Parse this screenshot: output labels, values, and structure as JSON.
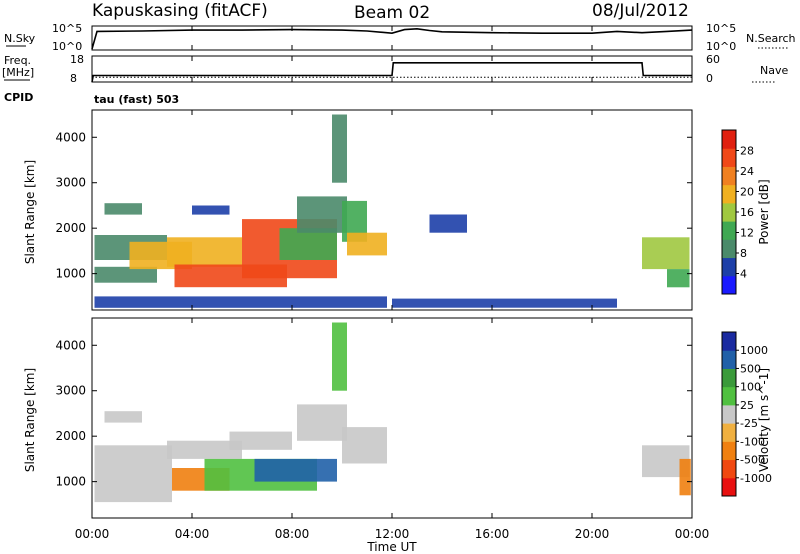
{
  "header": {
    "station": "Kapuskasing (fitACF)",
    "beam": "Beam 02",
    "date": "08/Jul/2012"
  },
  "strip_labels": {
    "nsky": "N.Sky",
    "nsky_ticks": [
      "10^5",
      "10^0"
    ],
    "nsearch": "N.Search",
    "freq_line1": "Freq.",
    "freq_line2": "[MHz]",
    "freq_ticks": [
      "18",
      "8"
    ],
    "nave": "Nave",
    "nave_ticks": [
      "60",
      "0"
    ],
    "cpid": "CPID",
    "cpid_value": "tau (fast) 503"
  },
  "colors": {
    "power": [
      "#1a1aff",
      "#1d3fa8",
      "#4a8a6a",
      "#3fa852",
      "#a0c840",
      "#f0b020",
      "#f08020",
      "#f04818",
      "#e02010"
    ],
    "velocity": [
      "#e81010",
      "#f04810",
      "#f08010",
      "#f0b040",
      "#c8c8c8",
      "#50c040",
      "#3a9a3a",
      "#2060a8",
      "#1a2aa0"
    ],
    "line": "#000000"
  },
  "chart_data": [
    {
      "type": "line",
      "name": "noise-strip",
      "x_ticks": [
        "00:00",
        "04:00",
        "08:00",
        "12:00",
        "16:00",
        "20:00",
        "00:00"
      ],
      "series": [
        {
          "name": "N.Sky",
          "x": [
            0,
            0.2,
            2,
            4,
            6,
            8,
            10,
            11,
            12,
            12.5,
            13,
            13.5,
            14,
            16,
            18,
            20,
            21,
            22,
            23,
            24
          ],
          "values": [
            0,
            4,
            4.1,
            4.3,
            4.3,
            4.4,
            4.3,
            4.1,
            3.6,
            4.4,
            4.6,
            4.2,
            3.9,
            3.7,
            3.6,
            3.6,
            4.0,
            3.7,
            4.0,
            4.3
          ]
        },
        {
          "name": "N.Search",
          "x": [],
          "values": []
        }
      ]
    },
    {
      "type": "line",
      "name": "freq-strip",
      "x_ticks": [
        "00:00",
        "04:00",
        "08:00",
        "12:00",
        "16:00",
        "20:00",
        "00:00"
      ],
      "series": [
        {
          "name": "Freq.",
          "x": [
            0,
            0.05,
            12,
            12.05,
            22,
            22.05,
            24
          ],
          "values": [
            8,
            10.5,
            10.5,
            15.4,
            15.4,
            10.5,
            10.5
          ]
        },
        {
          "name": "Nave",
          "x": [
            0,
            24
          ],
          "values": [
            12,
            12
          ]
        }
      ]
    },
    {
      "type": "heatmap",
      "name": "power",
      "xlabel": "",
      "ylabel": "Slant Range [km]",
      "x_ticks": [
        "00:00",
        "04:00",
        "08:00",
        "12:00",
        "16:00",
        "20:00",
        "00:00"
      ],
      "xlim": [
        0,
        24
      ],
      "ylim": [
        200,
        4600
      ],
      "y_ticks": [
        1000,
        2000,
        3000,
        4000
      ],
      "colorbar": {
        "label": "Power [dB]",
        "ticks": [
          4,
          8,
          12,
          16,
          20,
          24,
          28
        ],
        "range": [
          0,
          32
        ]
      },
      "regions": [
        {
          "x": [
            0.1,
            3.0
          ],
          "y": [
            1300,
            1850
          ],
          "value": 10
        },
        {
          "x": [
            0.1,
            2.6
          ],
          "y": [
            800,
            1150
          ],
          "value": 8
        },
        {
          "x": [
            1.5,
            4.0
          ],
          "y": [
            1100,
            1700
          ],
          "value": 18
        },
        {
          "x": [
            3.0,
            6.0
          ],
          "y": [
            1150,
            1800
          ],
          "value": 20
        },
        {
          "x": [
            3.3,
            7.8
          ],
          "y": [
            700,
            1200
          ],
          "value": 28
        },
        {
          "x": [
            6.0,
            9.8
          ],
          "y": [
            900,
            2200
          ],
          "value": 26
        },
        {
          "x": [
            7.5,
            9.8
          ],
          "y": [
            1300,
            2000
          ],
          "value": 14
        },
        {
          "x": [
            8.2,
            10.2
          ],
          "y": [
            1900,
            2700
          ],
          "value": 8
        },
        {
          "x": [
            10.0,
            11.0
          ],
          "y": [
            1700,
            2600
          ],
          "value": 12
        },
        {
          "x": [
            10.2,
            11.8
          ],
          "y": [
            1400,
            1900
          ],
          "value": 20
        },
        {
          "x": [
            0.5,
            2.0
          ],
          "y": [
            2300,
            2550
          ],
          "value": 8
        },
        {
          "x": [
            4.0,
            5.5
          ],
          "y": [
            2300,
            2500
          ],
          "value": 6
        },
        {
          "x": [
            9.6,
            10.2
          ],
          "y": [
            3000,
            4500
          ],
          "value": 8
        },
        {
          "x": [
            0.1,
            11.8
          ],
          "y": [
            250,
            500
          ],
          "value": 6
        },
        {
          "x": [
            12.0,
            21.0
          ],
          "y": [
            250,
            450
          ],
          "value": 4
        },
        {
          "x": [
            13.5,
            15.0
          ],
          "y": [
            1900,
            2300
          ],
          "value": 6
        },
        {
          "x": [
            22.0,
            23.9
          ],
          "y": [
            1100,
            1800
          ],
          "value": 16
        },
        {
          "x": [
            23.0,
            23.9
          ],
          "y": [
            700,
            1100
          ],
          "value": 12
        }
      ]
    },
    {
      "type": "heatmap",
      "name": "velocity",
      "xlabel": "Time UT",
      "ylabel": "Slant Range [km]",
      "x_ticks": [
        "00:00",
        "04:00",
        "08:00",
        "12:00",
        "16:00",
        "20:00",
        "00:00"
      ],
      "xlim": [
        0,
        24
      ],
      "ylim": [
        200,
        4600
      ],
      "y_ticks": [
        1000,
        2000,
        3000,
        4000
      ],
      "colorbar": {
        "label": "Velocity [m s^-1]",
        "ticks": [
          "1000",
          "500",
          "100",
          "25",
          "-25",
          "-100",
          "-500",
          "-1000"
        ]
      },
      "regions": [
        {
          "x": [
            0.1,
            3.2
          ],
          "y": [
            550,
            1800
          ],
          "value": 0
        },
        {
          "x": [
            0.5,
            2.0
          ],
          "y": [
            2300,
            2550
          ],
          "value": 0
        },
        {
          "x": [
            3.0,
            6.0
          ],
          "y": [
            1500,
            1900
          ],
          "value": 0
        },
        {
          "x": [
            5.5,
            8.0
          ],
          "y": [
            1700,
            2100
          ],
          "value": 0
        },
        {
          "x": [
            3.2,
            5.5
          ],
          "y": [
            800,
            1300
          ],
          "value": -400
        },
        {
          "x": [
            4.5,
            9.0
          ],
          "y": [
            800,
            1500
          ],
          "value": 80
        },
        {
          "x": [
            6.5,
            9.8
          ],
          "y": [
            1000,
            1500
          ],
          "value": 600
        },
        {
          "x": [
            8.2,
            10.2
          ],
          "y": [
            1900,
            2700
          ],
          "value": 0
        },
        {
          "x": [
            10.0,
            11.8
          ],
          "y": [
            1400,
            2200
          ],
          "value": 0
        },
        {
          "x": [
            22.0,
            23.9
          ],
          "y": [
            1100,
            1800
          ],
          "value": 0
        },
        {
          "x": [
            23.5,
            23.95
          ],
          "y": [
            700,
            1500
          ],
          "value": -300
        },
        {
          "x": [
            9.6,
            10.2
          ],
          "y": [
            3000,
            4500
          ],
          "value": 60
        }
      ]
    }
  ]
}
